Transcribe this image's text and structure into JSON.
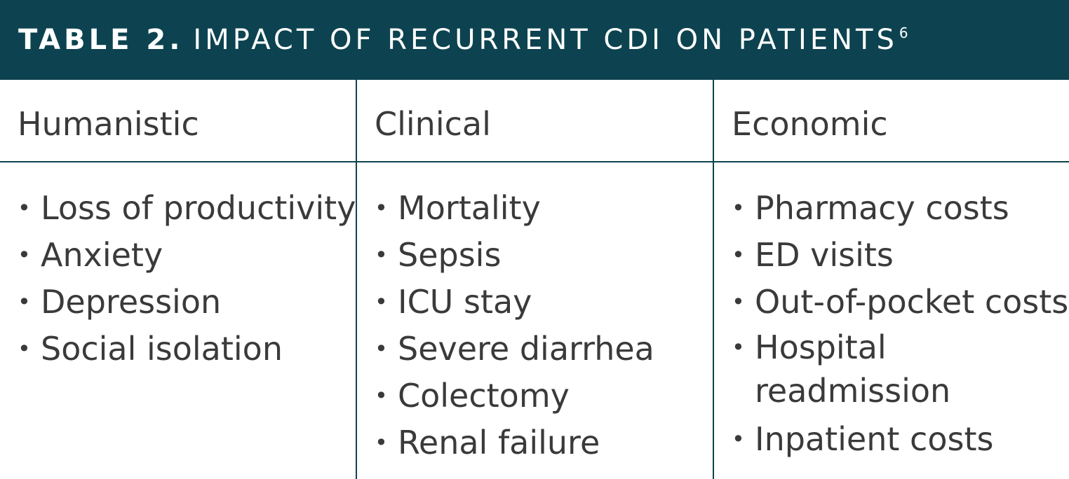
{
  "title": {
    "label": "TABLE 2.",
    "text": "IMPACT OF RECURRENT CDI ON PATIENTS",
    "superscript": "6"
  },
  "columns": [
    {
      "heading": "Humanistic",
      "items": [
        "Loss of productivity",
        "Anxiety",
        "Depression",
        "Social isolation"
      ]
    },
    {
      "heading": "Clinical",
      "items": [
        "Mortality",
        "Sepsis",
        "ICU stay",
        "Severe diarrhea",
        "Colectomy",
        "Renal failure"
      ]
    },
    {
      "heading": "Economic",
      "items": [
        "Pharmacy costs",
        "ED visits",
        "Out-of-pocket costs",
        "Hospital readmission",
        "Inpatient costs"
      ]
    }
  ],
  "colors": {
    "header_bg": "#0d4350",
    "text": "#3a3a3a"
  }
}
